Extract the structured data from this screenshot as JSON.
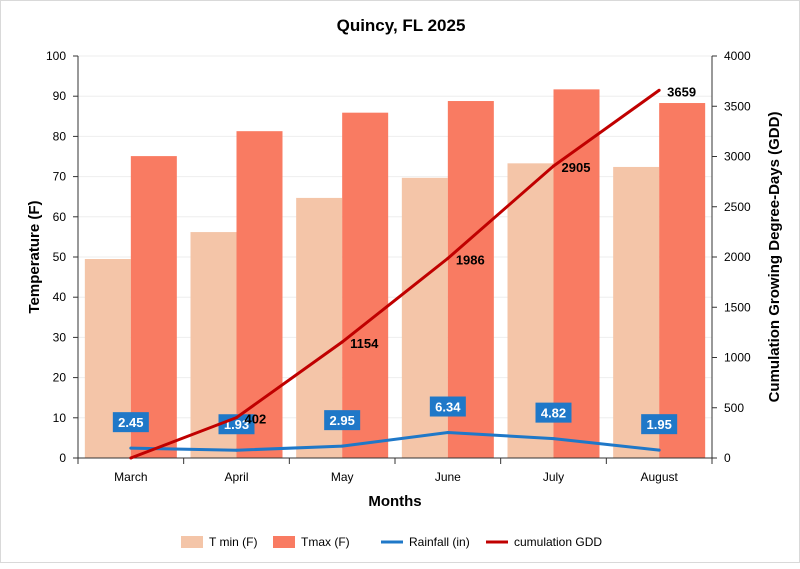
{
  "chart_data": {
    "type": "bar",
    "title": "Quincy, FL 2025",
    "xlabel": "Months",
    "ylabel": "Temperature (F)",
    "y2label": "Cumulation Growing Degree-Days (GDD)",
    "ylim": [
      0,
      100
    ],
    "y2lim": [
      0,
      4000
    ],
    "yticks": [
      0,
      10,
      20,
      30,
      40,
      50,
      60,
      70,
      80,
      90,
      100
    ],
    "y2ticks": [
      0,
      500,
      1000,
      1500,
      2000,
      2500,
      3000,
      3500,
      4000
    ],
    "grid": true,
    "legend_position": "bottom",
    "categories": [
      "March",
      "April",
      "May",
      "June",
      "July",
      "August"
    ],
    "series": [
      {
        "name": "T min (F)",
        "kind": "bar",
        "axis": "left",
        "color": "#f4c5a8",
        "values": [
          49.5,
          56.2,
          64.7,
          69.7,
          73.3,
          72.4
        ]
      },
      {
        "name": "Tmax (F)",
        "kind": "bar",
        "axis": "left",
        "color": "#f97b62",
        "values": [
          75.1,
          81.3,
          85.9,
          88.8,
          91.7,
          88.3
        ]
      },
      {
        "name": "Rainfall (in)",
        "kind": "line",
        "axis": "left",
        "color": "#1f78c8",
        "values": [
          2.45,
          1.93,
          2.95,
          6.34,
          4.82,
          1.95
        ],
        "labels": [
          "2.45",
          "1.93",
          "2.95",
          "6.34",
          "4.82",
          "1.95"
        ]
      },
      {
        "name": "cumulation GDD",
        "kind": "line",
        "axis": "right",
        "color": "#c00000",
        "values": [
          0,
          402,
          1154,
          1986,
          2905,
          3659
        ],
        "labels": [
          "",
          "402",
          "1154",
          "1986",
          "2905",
          "3659"
        ]
      }
    ]
  }
}
